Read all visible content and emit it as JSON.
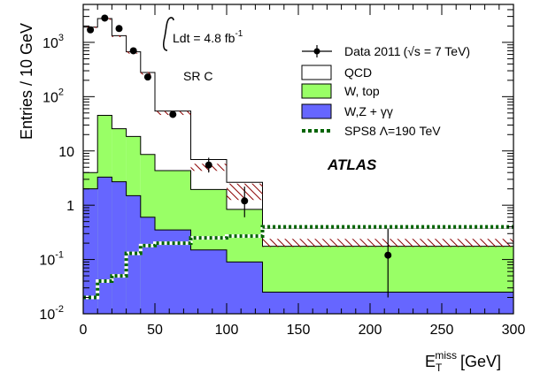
{
  "chart_data": {
    "type": "histogram",
    "ylabel": "Entries / 10 GeV",
    "xlabel_main": "E",
    "xlabel_sub": "T",
    "xlabel_sup": "miss",
    "xlabel_unit": "[GeV]",
    "xlim": [
      0,
      300
    ],
    "ylim": [
      0.01,
      5000
    ],
    "yscale": "log",
    "grid": false,
    "x_ticks": [
      "0",
      "50",
      "100",
      "150",
      "200",
      "250",
      "300"
    ],
    "y_ticks": [
      {
        "value": 1000,
        "base": "10",
        "exp": "3"
      },
      {
        "value": 100,
        "base": "10",
        "exp": "2"
      },
      {
        "value": 10,
        "base": "10",
        "exp": ""
      },
      {
        "value": 1,
        "base": "1",
        "exp": ""
      },
      {
        "value": 0.1,
        "base": "10",
        "exp": "-1"
      },
      {
        "value": 0.01,
        "base": "10",
        "exp": "-2"
      }
    ],
    "bin_edges": [
      0,
      10,
      20,
      30,
      40,
      50,
      75,
      100,
      125,
      300
    ],
    "stack": [
      {
        "name": "W,Z + γγ",
        "color": "#6666ff",
        "values": [
          2.0,
          3.3,
          2.7,
          1.5,
          0.6,
          0.35,
          0.15,
          0.09,
          0.025
        ]
      },
      {
        "name": "W, top",
        "color": "#99ff66",
        "values": [
          2.0,
          42,
          23,
          17,
          8,
          4,
          1.8,
          0.75,
          0.15
        ]
      },
      {
        "name": "QCD",
        "color": "#ffffff",
        "values": [
          1900,
          2700,
          1300,
          650,
          270,
          50,
          5,
          1.8,
          0.2
        ]
      }
    ],
    "uncertainty_band": {
      "color": "#8b0000",
      "lo": [
        1850,
        2600,
        1250,
        620,
        255,
        46,
        4.3,
        1.25,
        0.17
      ],
      "hi": [
        1950,
        2800,
        1350,
        680,
        285,
        54,
        5.8,
        2.5,
        0.24
      ]
    },
    "signal": {
      "name": "SPS8 Λ=190 TeV",
      "color": "#006400",
      "values": [
        0.02,
        0.04,
        0.05,
        0.13,
        0.18,
        0.2,
        0.25,
        0.27,
        0.4
      ]
    },
    "data_points": {
      "name_main": "Data 2011",
      "name_sqrt_s": "(√s = 7 TeV)",
      "x": [
        5,
        15,
        25,
        35,
        45,
        62.5,
        87.5,
        112.5,
        212.5
      ],
      "y": [
        1700,
        2800,
        1800,
        700,
        230,
        47,
        5.5,
        1.2,
        0.12
      ],
      "err_lo": [
        0,
        0,
        0,
        0,
        0,
        0,
        1.5,
        0.6,
        0.1
      ],
      "err_hi": [
        0,
        0,
        0,
        0,
        0,
        0,
        2.0,
        1.0,
        0.25
      ],
      "x_err": [
        5,
        5,
        5,
        5,
        5,
        12.5,
        12.5,
        12.5,
        87.5
      ]
    },
    "annotations": {
      "lumi_prefix": "Ldt = 4.8 fb",
      "lumi_sup": "-1",
      "region": "SR C",
      "experiment": "ATLAS"
    },
    "legend_position": "top-right"
  }
}
